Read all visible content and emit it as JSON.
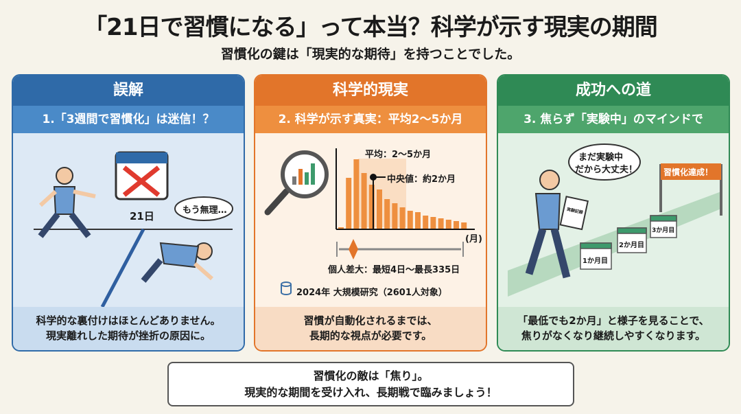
{
  "title": "「21日で習慣になる」って本当？科学が示す現実の期間",
  "subtitle": "習慣化の鍵は「現実的な期待」を持つことでした。",
  "panels": [
    {
      "header": "誤解",
      "subheader": "1.「3週間で習慣化」は迷信！？",
      "calendar_label": "21日",
      "bubble": "もう無理…",
      "body": [
        "科学的な裏付けはほとんどありません。",
        "現実離れした期待が挫折の原因に。"
      ]
    },
    {
      "header": "科学的現実",
      "subheader": "2. 科学が示す真実：平均2〜5か月",
      "mean_label": "平均：2〜5か月",
      "median_label": "中央値：約2か月",
      "axis_unit": "(月)",
      "range_label": "個人差大：最短4日〜最長335日",
      "source": "2024年 大規模研究（2601人対象）",
      "body": [
        "習慣が自動化されるまでは、",
        "長期的な視点が必要です。"
      ]
    },
    {
      "header": "成功への道",
      "subheader": "3. 焦らず「実験中」のマインドで",
      "bubble": [
        "まだ実験中",
        "だから大丈夫！"
      ],
      "clipboard": "実験記録",
      "goal_banner": "習慣化達成！",
      "milestones": [
        "1か月目",
        "2か月目",
        "3か月目"
      ],
      "body": [
        "「最低でも2か月」と様子を見ることで、",
        "焦りがなくなり継続しやすくなります。"
      ]
    }
  ],
  "footer": [
    "習慣化の敵は「焦り」。",
    "現実的な期間を受け入れ、長期戦で臨みましょう！"
  ],
  "colors": {
    "blue": "#2f6aa8",
    "orange": "#e2752a",
    "green": "#2f8a55",
    "background": "#f6f3ea"
  }
}
